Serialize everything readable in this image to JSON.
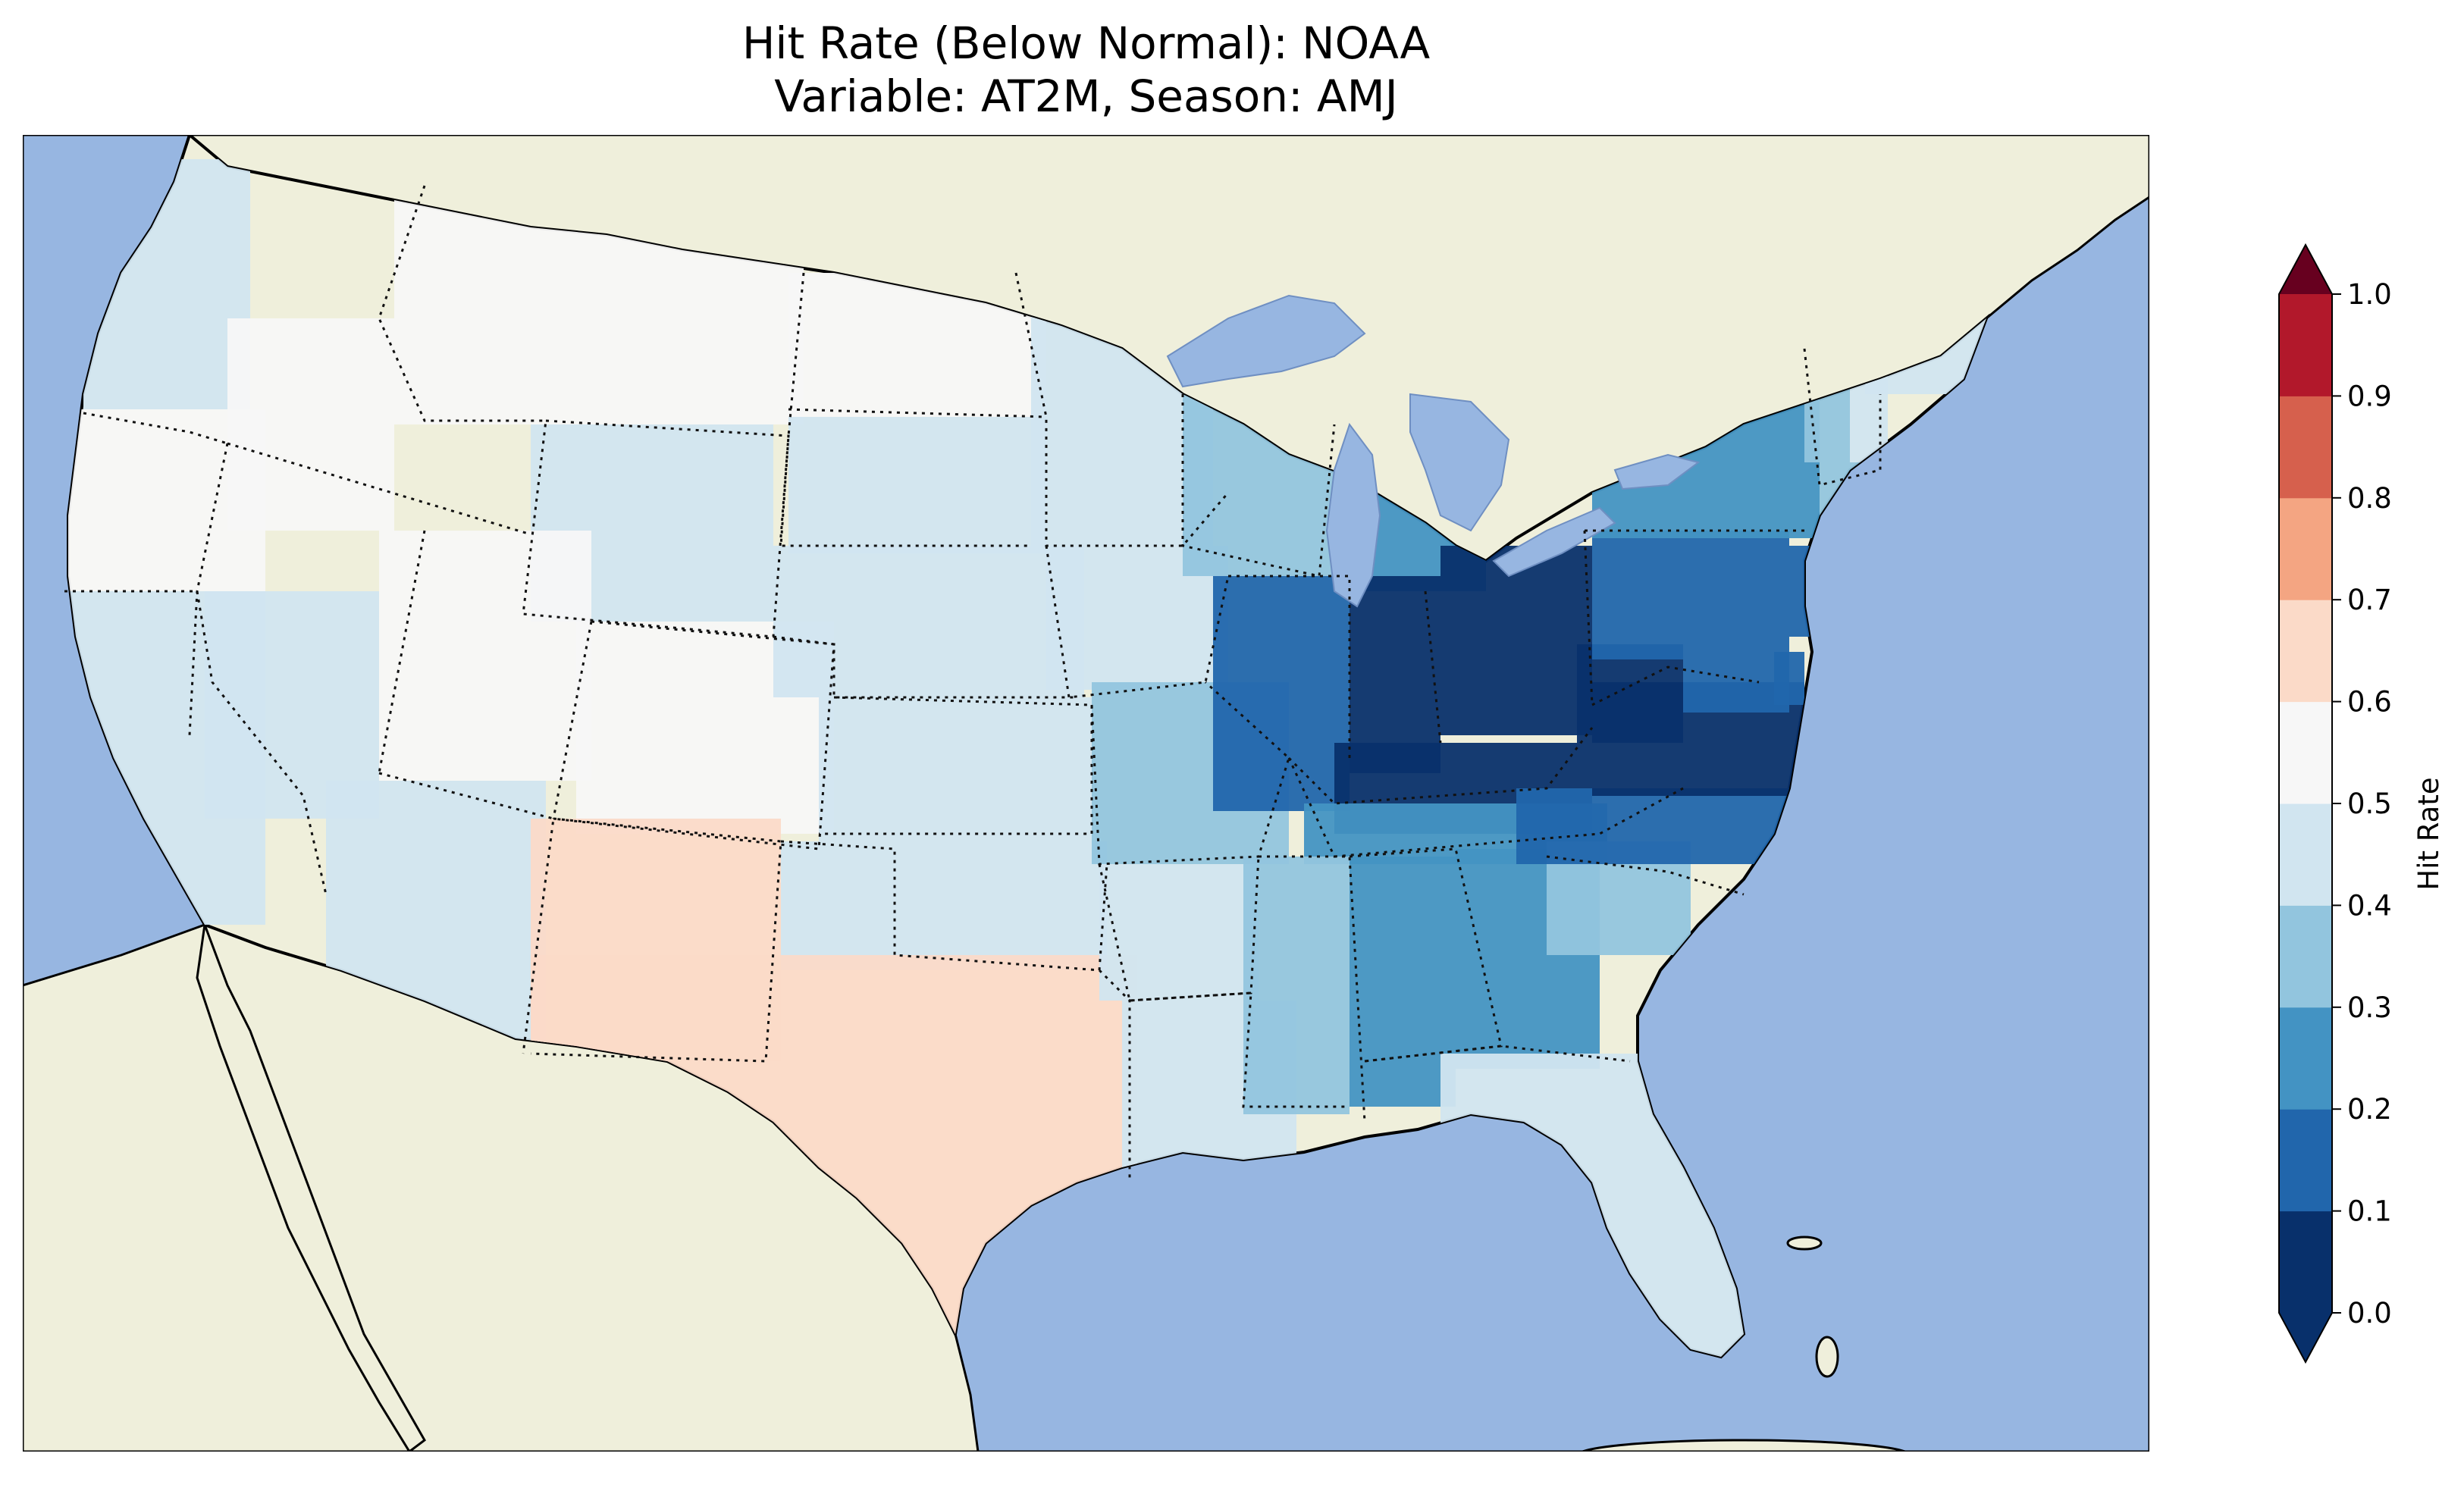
{
  "figure": {
    "title_line_1": "Hit Rate (Below Normal): NOAA",
    "title_line_2": "Variable: AT2M, Season: AMJ"
  },
  "map": {
    "ocean_color": "#97b6e1",
    "land_color": "#efefdb",
    "coastline_color": "#000000",
    "region": "Contiguous United States",
    "field_values": {
      "Washington": 0.48,
      "Oregon": 0.58,
      "California": 0.4,
      "Nevada": 0.48,
      "Idaho": 0.55,
      "Montana": 0.52,
      "Wyoming": 0.4,
      "Utah": 0.55,
      "Arizona": 0.45,
      "Colorado": 0.5,
      "New Mexico": 0.62,
      "North Dakota": 0.52,
      "South Dakota": 0.46,
      "Nebraska": 0.48,
      "Kansas": 0.48,
      "Oklahoma": 0.45,
      "Texas": 0.62,
      "Minnesota": 0.45,
      "Iowa": 0.42,
      "Missouri": 0.35,
      "Arkansas": 0.45,
      "Louisiana": 0.48,
      "Wisconsin": 0.32,
      "Illinois": 0.12,
      "Michigan": 0.22,
      "Indiana": 0.05,
      "Ohio": 0.05,
      "Kentucky": 0.06,
      "Tennessee": 0.22,
      "Mississippi": 0.35,
      "Alabama": 0.25,
      "Georgia": 0.25,
      "Florida": 0.4,
      "South Carolina": 0.35,
      "North Carolina": 0.18,
      "Virginia": 0.05,
      "West Virginia": 0.05,
      "Pennsylvania": 0.15,
      "New York": 0.25,
      "Vermont": 0.35,
      "New Hampshire": 0.45,
      "Maine": 0.48,
      "Massachusetts": 0.35,
      "Connecticut": 0.3,
      "New Jersey": 0.15,
      "Maryland": 0.1,
      "Delaware": 0.12
    }
  },
  "colorbar": {
    "label": "Hit Rate",
    "ticks": [
      "0.0",
      "0.1",
      "0.2",
      "0.3",
      "0.4",
      "0.5",
      "0.6",
      "0.7",
      "0.8",
      "0.9",
      "1.0"
    ],
    "colors": [
      "#08306b",
      "#2166ac",
      "#4393c3",
      "#92c5de",
      "#d1e5f0",
      "#f7f7f7",
      "#fbdac8",
      "#f4a582",
      "#d6604d",
      "#b2182b",
      "#67001f"
    ],
    "extend": "both"
  }
}
